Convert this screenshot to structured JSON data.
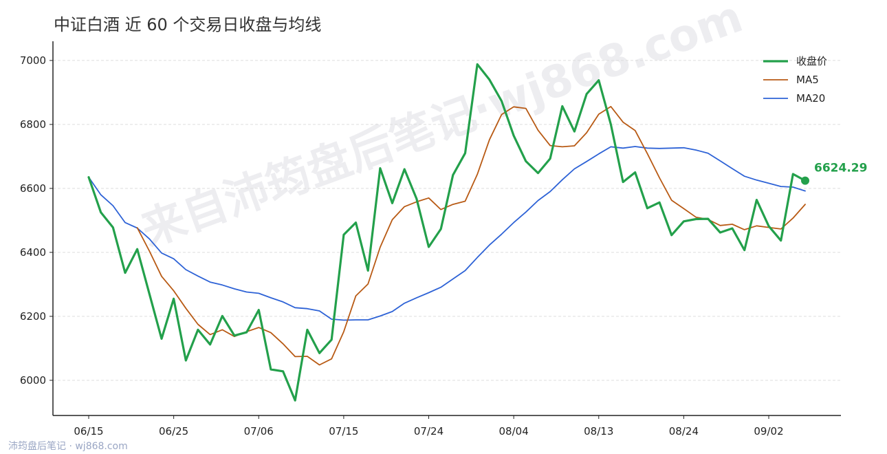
{
  "title": "中证白酒 近 60 个交易日收盘与均线",
  "watermark": "来自沛筠盘后笔记·wj868.com",
  "footer": "沛筠盘后笔记 · wj868.com",
  "colors": {
    "close": "#23a04b",
    "ma5": "#b85a14",
    "ma20": "#2d62d6"
  },
  "chart_data": {
    "type": "line",
    "title": "中证白酒 近 60 个交易日收盘与均线",
    "xlabel": "",
    "ylabel": "",
    "ylim": [
      5890,
      7060
    ],
    "y_ticks": [
      6000,
      6200,
      6400,
      6600,
      6800,
      7000
    ],
    "x_ticks": [
      {
        "index": 0,
        "label": "06/15"
      },
      {
        "index": 7,
        "label": "06/25"
      },
      {
        "index": 14,
        "label": "07/06"
      },
      {
        "index": 21,
        "label": "07/15"
      },
      {
        "index": 28,
        "label": "07/24"
      },
      {
        "index": 35,
        "label": "08/04"
      },
      {
        "index": 42,
        "label": "08/13"
      },
      {
        "index": 49,
        "label": "08/24"
      },
      {
        "index": 56,
        "label": "09/02"
      }
    ],
    "grid": "horizontal",
    "legend_position": "top-right",
    "last_value_label": "6624.29",
    "series": [
      {
        "name": "收盘价",
        "values": [
          6635,
          6525,
          6478,
          6336,
          6410,
          6270,
          6130,
          6255,
          6062,
          6158,
          6112,
          6201,
          6140,
          6150,
          6220,
          6034,
          6028,
          5937,
          6158,
          6085,
          6127,
          6455,
          6493,
          6343,
          6663,
          6554,
          6660,
          6568,
          6417,
          6473,
          6642,
          6710,
          6988,
          6940,
          6873,
          6765,
          6685,
          6648,
          6693,
          6857,
          6778,
          6895,
          6938,
          6800,
          6620,
          6650,
          6538,
          6556,
          6454,
          6497,
          6504,
          6505,
          6462,
          6475,
          6407,
          6564,
          6482,
          6437,
          6645,
          6624.29
        ]
      },
      {
        "name": "MA5",
        "values": [
          null,
          null,
          null,
          null,
          6477,
          6404,
          6325,
          6280,
          6225,
          6175,
          6143,
          6158,
          6137,
          6152,
          6165,
          6149,
          6114,
          6074,
          6075,
          6048,
          6067,
          6152,
          6264,
          6301,
          6416,
          6502,
          6543,
          6558,
          6570,
          6534,
          6550,
          6560,
          6644,
          6752,
          6831,
          6855,
          6850,
          6782,
          6734,
          6730,
          6733,
          6774,
          6832,
          6856,
          6807,
          6781,
          6709,
          6633,
          6563,
          6537,
          6510,
          6503,
          6484,
          6488,
          6471,
          6483,
          6478,
          6473,
          6507,
          6550
        ]
      },
      {
        "name": "MA20",
        "values": [
          6635,
          6580,
          6546,
          6493,
          6476,
          6442,
          6398,
          6380,
          6346,
          6326,
          6307,
          6298,
          6286,
          6276,
          6272,
          6258,
          6245,
          6227,
          6224,
          6217,
          6191,
          6188,
          6189,
          6189,
          6201,
          6215,
          6241,
          6258,
          6274,
          6291,
          6317,
          6343,
          6384,
          6423,
          6457,
          6493,
          6526,
          6562,
          6590,
          6627,
          6661,
          6684,
          6708,
          6730,
          6726,
          6731,
          6726,
          6725,
          6726,
          6727,
          6720,
          6710,
          6686,
          6662,
          6638,
          6626,
          6616,
          6606,
          6604,
          6592
        ]
      }
    ]
  }
}
